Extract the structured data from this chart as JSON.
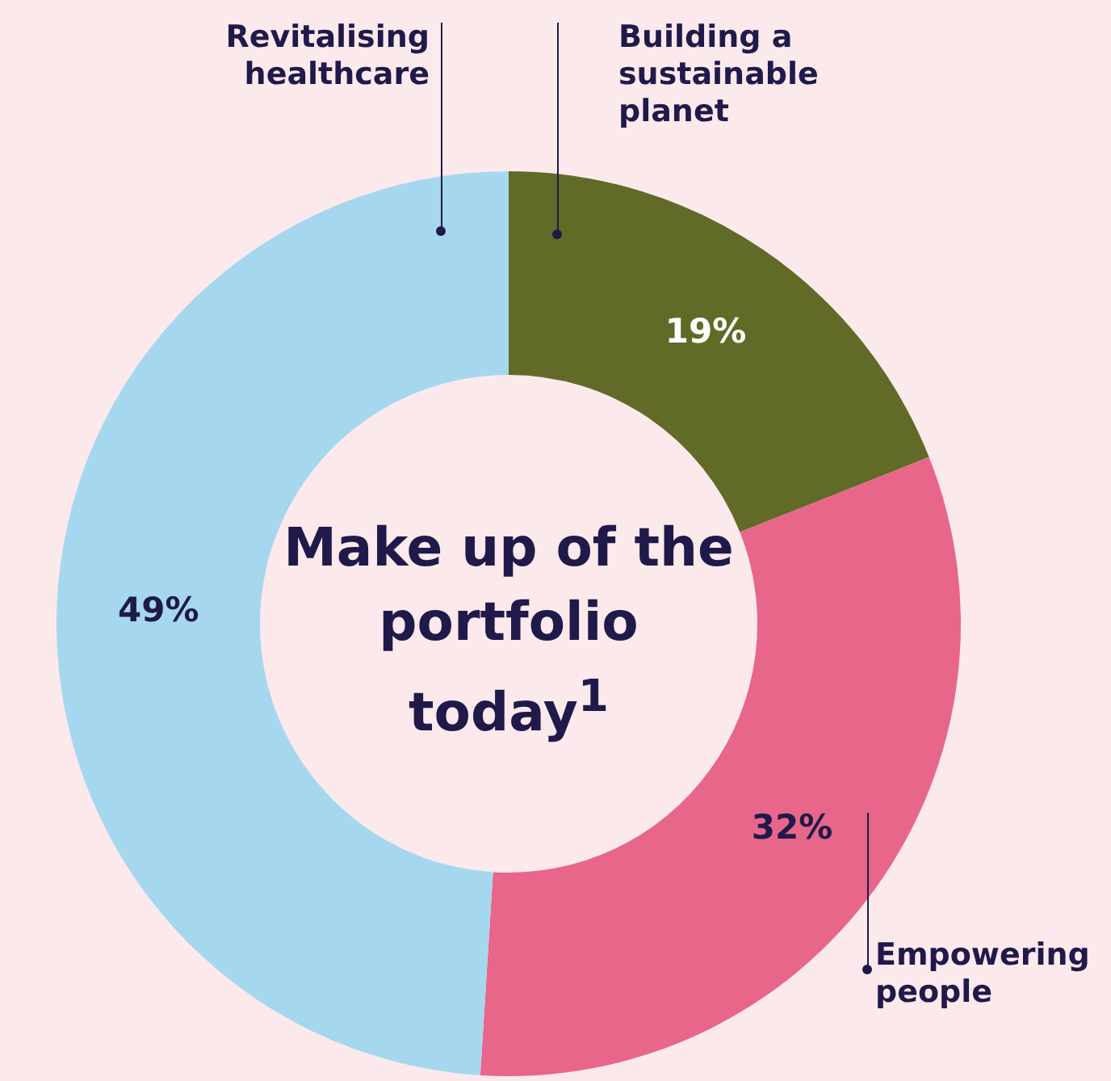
{
  "chart_data": {
    "type": "donut",
    "title": "Make up of the portfolio today$^{1}$",
    "categories": [
      "Building a sustainable planet",
      "Empowering people",
      "Revitalising healthcare"
    ],
    "values": [
      19,
      32,
      49
    ],
    "colors": [
      "#616a27",
      "#e8668a",
      "#a5d8ee"
    ],
    "value_labels": [
      "19%",
      "32%",
      "49%"
    ],
    "legend": false
  }
}
